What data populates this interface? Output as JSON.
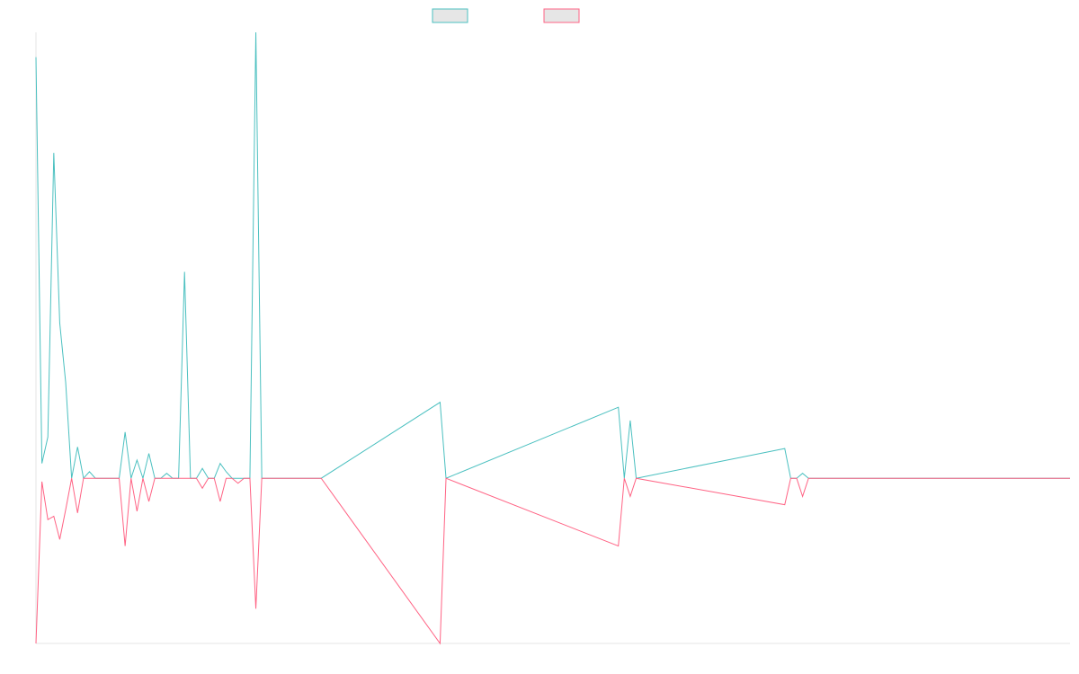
{
  "chart_data": {
    "type": "line",
    "title": "",
    "xlabel": "",
    "ylabel": "",
    "legend": {
      "placement": "top-center",
      "entries": [
        {
          "name": "",
          "color": "#4bc0c0"
        },
        {
          "name": "",
          "color": "#ff6384"
        }
      ]
    },
    "grid": false,
    "x_range": [
      0,
      174
    ],
    "ylim": [
      -100,
      270
    ],
    "series": [
      {
        "name": "",
        "color": "#4bc0c0",
        "points": [
          [
            0,
            255
          ],
          [
            1,
            9
          ],
          [
            2,
            25
          ],
          [
            3,
            197
          ],
          [
            4,
            94
          ],
          [
            5,
            58
          ],
          [
            6,
            0
          ],
          [
            7,
            19
          ],
          [
            8,
            0
          ],
          [
            9,
            4
          ],
          [
            10,
            0
          ],
          [
            11,
            0
          ],
          [
            12,
            0
          ],
          [
            13,
            0
          ],
          [
            14,
            0
          ],
          [
            15,
            28
          ],
          [
            16,
            0
          ],
          [
            17,
            11
          ],
          [
            18,
            0
          ],
          [
            19,
            15
          ],
          [
            20,
            0
          ],
          [
            21,
            0
          ],
          [
            22,
            3
          ],
          [
            23,
            0
          ],
          [
            24,
            0
          ],
          [
            25,
            125
          ],
          [
            26,
            0
          ],
          [
            27,
            0
          ],
          [
            28,
            6
          ],
          [
            29,
            0
          ],
          [
            30,
            0
          ],
          [
            31,
            9
          ],
          [
            32,
            4
          ],
          [
            33,
            0
          ],
          [
            34,
            0
          ],
          [
            35,
            0
          ],
          [
            36,
            0
          ],
          [
            37,
            270
          ],
          [
            38,
            0
          ],
          [
            39,
            0
          ],
          [
            40,
            0
          ],
          [
            41,
            0
          ],
          [
            42,
            0
          ],
          [
            43,
            0
          ],
          [
            44,
            0
          ],
          [
            45,
            0
          ],
          [
            46,
            0
          ],
          [
            47,
            0
          ],
          [
            48,
            0
          ],
          [
            68,
            46
          ],
          [
            69,
            0
          ],
          [
            98,
            43
          ],
          [
            99,
            0
          ],
          [
            100,
            35
          ],
          [
            101,
            0
          ],
          [
            126,
            18
          ],
          [
            127,
            0
          ],
          [
            128,
            0
          ],
          [
            129,
            3
          ],
          [
            130,
            0
          ],
          [
            174,
            0
          ]
        ]
      },
      {
        "name": "",
        "color": "#ff6384",
        "points": [
          [
            0,
            -100
          ],
          [
            1,
            -2
          ],
          [
            2,
            -25
          ],
          [
            3,
            -23
          ],
          [
            4,
            -37
          ],
          [
            5,
            -19
          ],
          [
            6,
            0
          ],
          [
            7,
            -21
          ],
          [
            8,
            0
          ],
          [
            9,
            0
          ],
          [
            10,
            0
          ],
          [
            11,
            0
          ],
          [
            12,
            0
          ],
          [
            13,
            0
          ],
          [
            14,
            0
          ],
          [
            15,
            -41
          ],
          [
            16,
            0
          ],
          [
            17,
            -20
          ],
          [
            18,
            0
          ],
          [
            19,
            -14
          ],
          [
            20,
            0
          ],
          [
            21,
            0
          ],
          [
            22,
            0
          ],
          [
            23,
            0
          ],
          [
            24,
            0
          ],
          [
            25,
            0
          ],
          [
            26,
            0
          ],
          [
            27,
            0
          ],
          [
            28,
            -6
          ],
          [
            29,
            0
          ],
          [
            30,
            0
          ],
          [
            31,
            -14
          ],
          [
            32,
            0
          ],
          [
            33,
            0
          ],
          [
            34,
            -3
          ],
          [
            35,
            0
          ],
          [
            36,
            0
          ],
          [
            37,
            -79
          ],
          [
            38,
            0
          ],
          [
            39,
            0
          ],
          [
            40,
            0
          ],
          [
            41,
            0
          ],
          [
            42,
            0
          ],
          [
            43,
            0
          ],
          [
            44,
            0
          ],
          [
            45,
            0
          ],
          [
            46,
            0
          ],
          [
            47,
            0
          ],
          [
            48,
            0
          ],
          [
            68,
            -100
          ],
          [
            69,
            0
          ],
          [
            98,
            -41
          ],
          [
            99,
            0
          ],
          [
            100,
            -11
          ],
          [
            101,
            0
          ],
          [
            126,
            -16
          ],
          [
            127,
            0
          ],
          [
            128,
            0
          ],
          [
            129,
            -11
          ],
          [
            130,
            0
          ],
          [
            174,
            0
          ]
        ]
      }
    ]
  }
}
